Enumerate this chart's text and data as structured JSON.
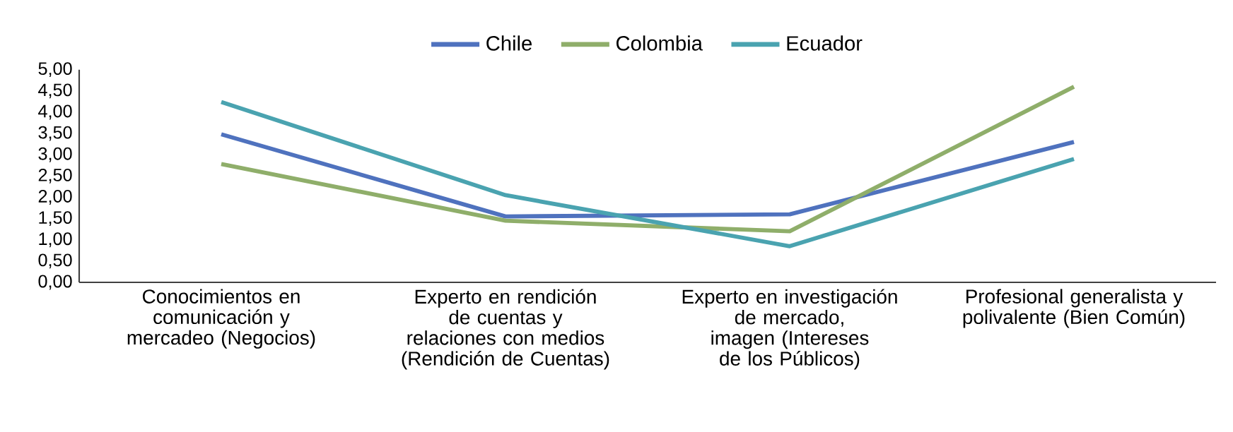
{
  "chart_data": {
    "type": "line",
    "categories": [
      "Conocimientos en comunicación y mercadeo (Negocios)",
      "Experto en rendición de cuentas y relaciones con medios (Rendición de Cuentas)",
      "Experto en investigación de mercado, imagen (Intereses de los Públicos)",
      "Profesional generalista y polivalente (Bien Común)"
    ],
    "series": [
      {
        "name": "Chile",
        "color": "#4f72be",
        "values": [
          3.48,
          1.55,
          1.6,
          3.3
        ]
      },
      {
        "name": "Colombia",
        "color": "#8fae6a",
        "values": [
          2.78,
          1.45,
          1.2,
          4.6
        ]
      },
      {
        "name": "Ecuador",
        "color": "#4aa3b0",
        "values": [
          4.24,
          2.05,
          0.85,
          2.9
        ]
      }
    ],
    "ylim": [
      0,
      5
    ],
    "yticks": [
      {
        "value": 0,
        "label": "0,00"
      },
      {
        "value": 0.5,
        "label": "0,50"
      },
      {
        "value": 1,
        "label": "1,00"
      },
      {
        "value": 1.5,
        "label": "1,50"
      },
      {
        "value": 2,
        "label": "2,00"
      },
      {
        "value": 2.5,
        "label": "2,50"
      },
      {
        "value": 3,
        "label": "3,00"
      },
      {
        "value": 3.5,
        "label": "3,50"
      },
      {
        "value": 4,
        "label": "4,00"
      },
      {
        "value": 4.5,
        "label": "4,50"
      },
      {
        "value": 5,
        "label": "5,00"
      }
    ],
    "legend": "top",
    "grid": false,
    "marker": "none",
    "line_style": "solid"
  }
}
